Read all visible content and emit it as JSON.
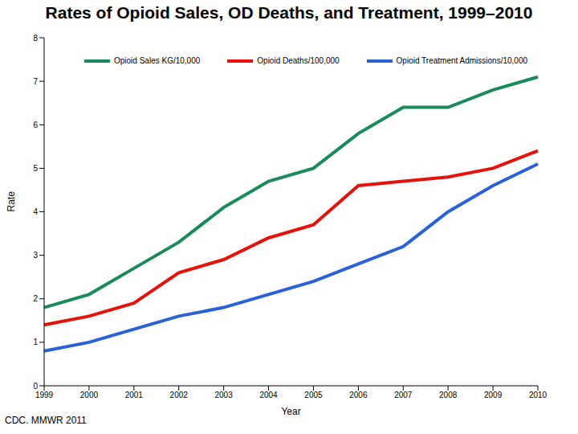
{
  "chart_data": {
    "type": "line",
    "title": "Rates of Opioid Sales, OD Deaths, and Treatment, 1999–2010",
    "x_label": "Year",
    "y_label": "Rate",
    "annotation": "CDC. MMWR 2011",
    "categories": [
      "1999",
      "2000",
      "2001",
      "2002",
      "2003",
      "2004",
      "2005",
      "2006",
      "2007",
      "2008",
      "2009",
      "2010"
    ],
    "series": [
      {
        "name": "Opioid Sales KG/10,000",
        "color": "#1a8a5a",
        "values": [
          1.8,
          2.1,
          2.7,
          3.3,
          4.1,
          4.7,
          5.0,
          5.8,
          6.4,
          6.4,
          6.8,
          7.1
        ]
      },
      {
        "name": "Opioid Deaths/100,000",
        "color": "#e3120b",
        "values": [
          1.4,
          1.6,
          1.9,
          2.6,
          2.9,
          3.4,
          3.7,
          4.6,
          4.7,
          4.8,
          5.0,
          5.4
        ]
      },
      {
        "name": "Opioid Treatment Admissions/10,000",
        "color": "#2a62d6",
        "values": [
          0.8,
          1.0,
          1.3,
          1.6,
          1.8,
          2.1,
          2.4,
          2.8,
          3.2,
          4.0,
          4.6,
          5.1
        ]
      }
    ],
    "ylim": [
      0,
      8
    ],
    "yticks": [
      0,
      1,
      2,
      3,
      4,
      5,
      6,
      7,
      8
    ],
    "grid": false
  }
}
